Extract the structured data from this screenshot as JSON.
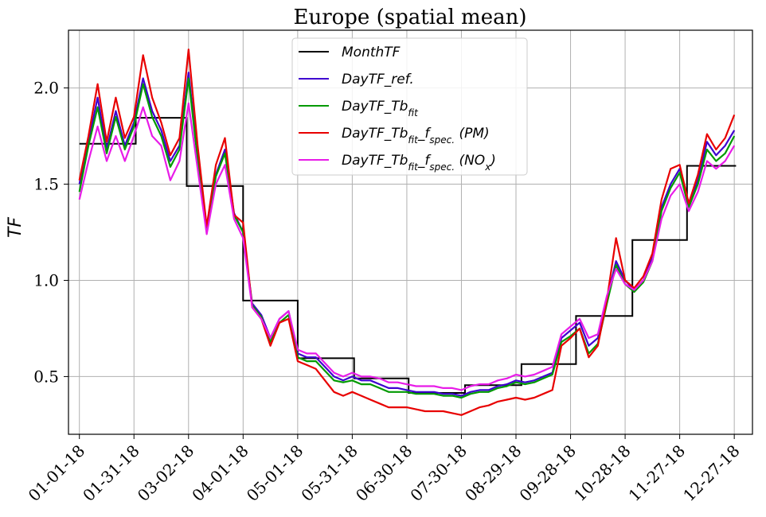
{
  "chart_data": {
    "type": "line",
    "title": "Europe (spatial mean)",
    "xlabel": "",
    "ylabel": "TF",
    "ylim": [
      0.2,
      2.3
    ],
    "xlim_days": [
      -6,
      370
    ],
    "grid": true,
    "legend_position": "top-center",
    "x_tick_labels": [
      "01-01-18",
      "01-31-18",
      "03-02-18",
      "04-01-18",
      "05-01-18",
      "05-31-18",
      "06-30-18",
      "07-30-18",
      "08-29-18",
      "09-28-18",
      "10-28-18",
      "11-27-18",
      "12-27-18"
    ],
    "x_tick_days": [
      0,
      30,
      60,
      90,
      120,
      150,
      180,
      210,
      240,
      270,
      300,
      330,
      360
    ],
    "y_ticks": [
      0.5,
      1.0,
      1.5,
      2.0
    ],
    "y_tick_labels": [
      "0.5",
      "1.0",
      "1.5",
      "2.0"
    ],
    "month_tf": {
      "name": "MonthTF",
      "color": "#000000",
      "month_start_days": [
        0,
        31,
        59,
        90,
        120,
        151,
        181,
        212,
        243,
        273,
        304,
        334,
        365
      ],
      "values": [
        1.71,
        1.845,
        1.49,
        0.895,
        0.595,
        0.49,
        0.415,
        0.455,
        0.565,
        0.815,
        1.21,
        1.595
      ]
    },
    "x": [
      0,
      5,
      10,
      15,
      20,
      25,
      30,
      35,
      40,
      45,
      50,
      55,
      60,
      65,
      70,
      75,
      80,
      85,
      90,
      95,
      100,
      105,
      110,
      115,
      120,
      125,
      130,
      135,
      140,
      145,
      150,
      155,
      160,
      165,
      170,
      175,
      180,
      185,
      190,
      195,
      200,
      205,
      210,
      215,
      220,
      225,
      230,
      235,
      240,
      245,
      250,
      255,
      260,
      265,
      270,
      275,
      280,
      285,
      290,
      295,
      300,
      305,
      310,
      315,
      320,
      325,
      330,
      335,
      340,
      345,
      350,
      355,
      360
    ],
    "series": [
      {
        "name": "DayTF_ref.",
        "color": "#3f00d0",
        "values": [
          1.5,
          1.72,
          1.95,
          1.68,
          1.88,
          1.7,
          1.82,
          2.05,
          1.88,
          1.78,
          1.62,
          1.7,
          2.08,
          1.65,
          1.28,
          1.55,
          1.68,
          1.35,
          1.25,
          0.88,
          0.82,
          0.7,
          0.8,
          0.84,
          0.62,
          0.6,
          0.6,
          0.55,
          0.5,
          0.48,
          0.5,
          0.48,
          0.48,
          0.46,
          0.44,
          0.44,
          0.43,
          0.42,
          0.42,
          0.42,
          0.41,
          0.41,
          0.4,
          0.42,
          0.43,
          0.43,
          0.45,
          0.46,
          0.48,
          0.47,
          0.48,
          0.5,
          0.52,
          0.7,
          0.74,
          0.78,
          0.66,
          0.7,
          0.9,
          1.1,
          1.0,
          0.95,
          1.0,
          1.12,
          1.38,
          1.5,
          1.58,
          1.4,
          1.52,
          1.72,
          1.65,
          1.7,
          1.78
        ]
      },
      {
        "name": "DayTF_Tb_fit",
        "color": "#009a00",
        "values": [
          1.46,
          1.7,
          1.9,
          1.66,
          1.85,
          1.68,
          1.8,
          2.02,
          1.85,
          1.75,
          1.59,
          1.68,
          2.05,
          1.63,
          1.27,
          1.54,
          1.66,
          1.34,
          1.25,
          0.87,
          0.81,
          0.68,
          0.78,
          0.82,
          0.6,
          0.58,
          0.58,
          0.53,
          0.48,
          0.47,
          0.48,
          0.46,
          0.46,
          0.44,
          0.42,
          0.42,
          0.42,
          0.41,
          0.41,
          0.41,
          0.4,
          0.4,
          0.39,
          0.41,
          0.42,
          0.42,
          0.44,
          0.45,
          0.47,
          0.46,
          0.47,
          0.49,
          0.51,
          0.68,
          0.71,
          0.75,
          0.62,
          0.67,
          0.88,
          1.08,
          0.98,
          0.94,
          0.99,
          1.1,
          1.36,
          1.48,
          1.56,
          1.38,
          1.5,
          1.68,
          1.62,
          1.66,
          1.75
        ]
      },
      {
        "name": "DayTF_Tb_fit_f_spec. (PM)",
        "color": "#e80000",
        "values": [
          1.52,
          1.75,
          2.02,
          1.72,
          1.95,
          1.74,
          1.85,
          2.17,
          1.95,
          1.82,
          1.65,
          1.74,
          2.2,
          1.7,
          1.28,
          1.6,
          1.74,
          1.34,
          1.3,
          0.86,
          0.8,
          0.66,
          0.78,
          0.8,
          0.58,
          0.56,
          0.54,
          0.48,
          0.42,
          0.4,
          0.42,
          0.4,
          0.38,
          0.36,
          0.34,
          0.34,
          0.34,
          0.33,
          0.32,
          0.32,
          0.32,
          0.31,
          0.3,
          0.32,
          0.34,
          0.35,
          0.37,
          0.38,
          0.39,
          0.38,
          0.39,
          0.41,
          0.43,
          0.66,
          0.7,
          0.75,
          0.6,
          0.66,
          0.9,
          1.22,
          1.0,
          0.96,
          1.02,
          1.14,
          1.42,
          1.58,
          1.6,
          1.4,
          1.55,
          1.76,
          1.68,
          1.74,
          1.86
        ]
      },
      {
        "name": "DayTF_Tb_fit_f_spec. (NO_x)",
        "color": "#e81ce8",
        "values": [
          1.42,
          1.62,
          1.8,
          1.62,
          1.75,
          1.62,
          1.75,
          1.9,
          1.75,
          1.7,
          1.52,
          1.62,
          1.92,
          1.58,
          1.24,
          1.5,
          1.6,
          1.32,
          1.22,
          0.86,
          0.8,
          0.7,
          0.8,
          0.84,
          0.64,
          0.62,
          0.62,
          0.57,
          0.52,
          0.5,
          0.52,
          0.5,
          0.5,
          0.49,
          0.47,
          0.47,
          0.46,
          0.45,
          0.45,
          0.45,
          0.44,
          0.44,
          0.43,
          0.45,
          0.46,
          0.46,
          0.48,
          0.49,
          0.51,
          0.5,
          0.51,
          0.53,
          0.55,
          0.72,
          0.76,
          0.8,
          0.7,
          0.72,
          0.92,
          1.06,
          0.98,
          0.95,
          1.0,
          1.1,
          1.32,
          1.44,
          1.5,
          1.36,
          1.46,
          1.62,
          1.58,
          1.62,
          1.7
        ]
      }
    ],
    "legend": [
      {
        "label": "MonthTF",
        "color": "#000000"
      },
      {
        "label": "DayTF_ref.",
        "color": "#3f00d0"
      },
      {
        "label": "DayTF_Tb",
        "sub": "fit",
        "color": "#009a00"
      },
      {
        "label": "DayTF_Tb",
        "sub": "fit",
        "mid": "_f",
        "sub2": "spec.",
        "tail": " (PM)",
        "color": "#e80000"
      },
      {
        "label": "DayTF_Tb",
        "sub": "fit",
        "mid": "_f",
        "sub2": "spec.",
        "tail": " (NO",
        "sub3": "x",
        "tail2": ")",
        "color": "#e81ce8"
      }
    ]
  }
}
